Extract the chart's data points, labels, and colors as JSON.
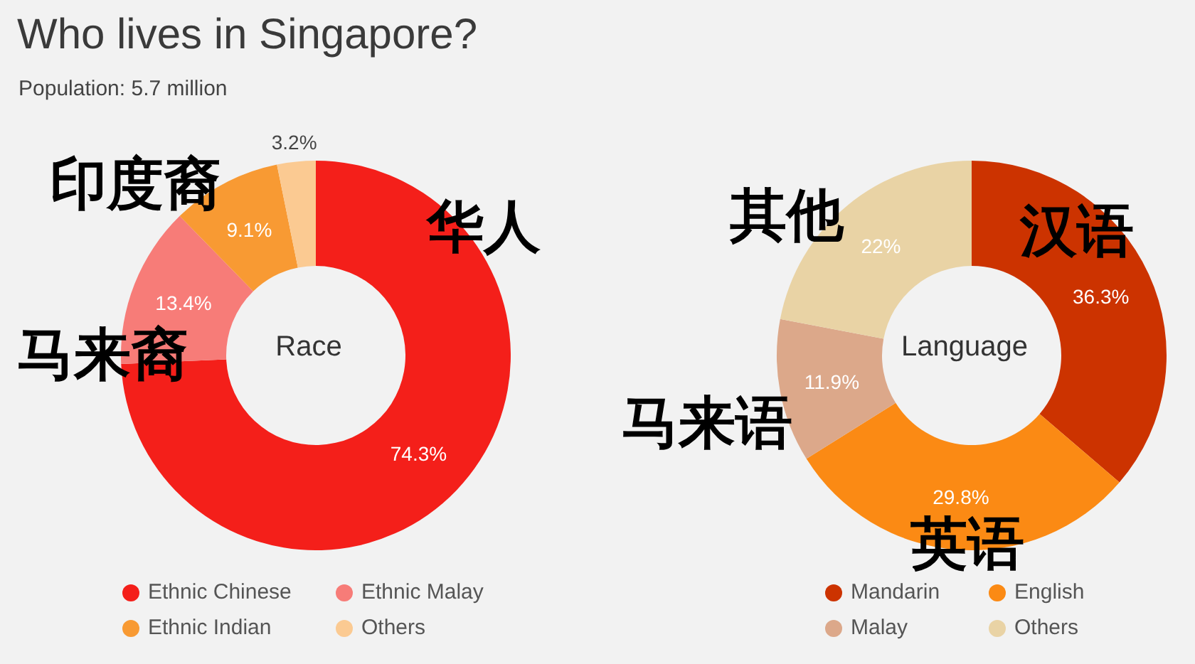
{
  "chart_data": [
    {
      "type": "donut",
      "title": "Who lives in Singapore?",
      "subtitle": "Population: 5.7 million",
      "categories": [
        "Ethnic Chinese",
        "Ethnic Malay",
        "Ethnic Indian",
        "Others"
      ],
      "values": [
        74.3,
        13.4,
        9.1,
        3.2
      ],
      "value_labels": [
        "74.3%",
        "13.4%",
        "9.1%",
        "3.2%"
      ],
      "colors": [
        "#f41f1a",
        "#f77c78",
        "#f89a33",
        "#fbca92"
      ],
      "annotations": [
        "Race",
        {
          "text": "华人",
          "x": "Ethnic Chinese"
        },
        {
          "text": "马来裔",
          "x": "Ethnic Malay"
        },
        {
          "text": "印度裔",
          "x": "Ethnic Indian"
        }
      ],
      "legend": "bottom"
    },
    {
      "type": "donut",
      "categories": [
        "Mandarin",
        "English",
        "Malay",
        "Others"
      ],
      "values": [
        36.3,
        29.8,
        11.9,
        22
      ],
      "value_labels": [
        "36.3%",
        "29.8%",
        "11.9%",
        "22%"
      ],
      "colors": [
        "#cc3300",
        "#fb8a14",
        "#dca88a",
        "#e9d3a5"
      ],
      "annotations": [
        "Language",
        {
          "text": "汉语",
          "x": "Mandarin"
        },
        {
          "text": "英语",
          "x": "English"
        },
        {
          "text": "马来语",
          "x": "Malay"
        },
        {
          "text": "其他",
          "x": "Others"
        }
      ],
      "legend": "bottom"
    }
  ]
}
